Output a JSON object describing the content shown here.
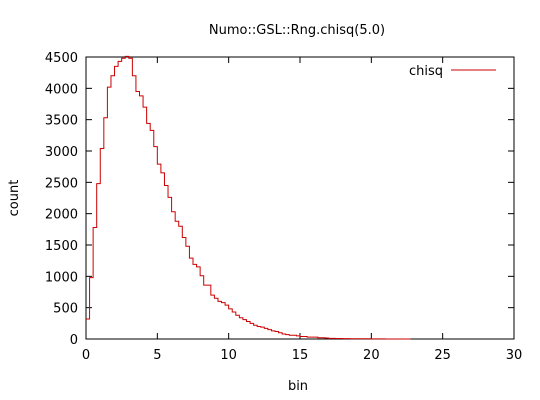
{
  "chart_data": {
    "type": "step",
    "title": "Numo::GSL::Rng.chisq(5.0)",
    "xlabel": "bin",
    "ylabel": "count",
    "xlim": [
      0,
      30
    ],
    "ylim": [
      0,
      4500
    ],
    "xticks": [
      0,
      5,
      10,
      15,
      20,
      25,
      30
    ],
    "yticks": [
      0,
      500,
      1000,
      1500,
      2000,
      2500,
      3000,
      3500,
      4000,
      4500
    ],
    "grid": false,
    "legend_position": "top-right",
    "series": [
      {
        "name": "chisq",
        "color": "#cc0000",
        "bin_width": 0.25,
        "x": [
          0,
          0.25,
          0.5,
          0.75,
          1.0,
          1.25,
          1.5,
          1.75,
          2.0,
          2.25,
          2.5,
          2.75,
          3.0,
          3.25,
          3.5,
          3.75,
          4.0,
          4.25,
          4.5,
          4.75,
          5.0,
          5.25,
          5.5,
          5.75,
          6.0,
          6.25,
          6.5,
          6.75,
          7.0,
          7.25,
          7.5,
          7.75,
          8.0,
          8.25,
          8.5,
          8.75,
          9.0,
          9.25,
          9.5,
          9.75,
          10.0,
          10.25,
          10.5,
          10.75,
          11.0,
          11.25,
          11.5,
          11.75,
          12.0,
          12.25,
          12.5,
          12.75,
          13.0,
          13.25,
          13.5,
          13.75,
          14.0,
          14.25,
          14.5,
          14.75,
          15.0,
          15.25,
          15.5,
          15.75,
          16.0,
          16.25,
          16.5,
          16.75,
          17.0,
          17.5,
          18.0,
          18.5,
          19.0,
          19.5,
          20.0,
          20.5,
          21.0,
          21.5,
          22.0,
          22.5
        ],
        "values": [
          320,
          980,
          1780,
          2480,
          3040,
          3530,
          4020,
          4200,
          4350,
          4430,
          4480,
          4510,
          4480,
          4200,
          3950,
          3880,
          3700,
          3440,
          3330,
          3070,
          2790,
          2650,
          2450,
          2260,
          2030,
          1880,
          1800,
          1620,
          1480,
          1290,
          1190,
          1150,
          1010,
          860,
          860,
          700,
          650,
          600,
          580,
          540,
          480,
          430,
          380,
          340,
          310,
          280,
          250,
          220,
          200,
          190,
          170,
          150,
          130,
          120,
          100,
          80,
          70,
          60,
          60,
          50,
          40,
          40,
          30,
          30,
          30,
          20,
          20,
          15,
          10,
          8,
          6,
          5,
          4,
          3,
          2,
          2,
          1,
          1,
          0,
          0
        ]
      }
    ]
  }
}
